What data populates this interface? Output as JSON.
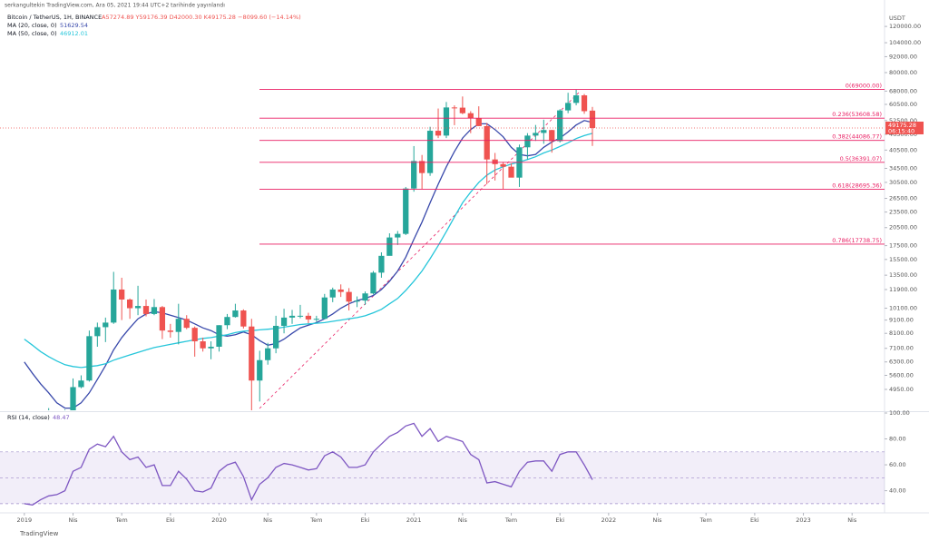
{
  "chart_data": {
    "type": "candlestick",
    "attribution": "serkangultekin TradingView.com, Ara 05, 2021 19:44 UTC+2 tarihinde yayınlandı",
    "title": "Bitcoin / TetherUS, 1H, BINANCE",
    "ohlc_summary": "A57274.89 Y59176.39 D42000.30 K49175.28 −8099.60 (−14.14%)",
    "currency": "USDT",
    "last_price": 49175.28,
    "countdown": "06:15:40",
    "footer": "TradingView",
    "log_scale": true,
    "colors": {
      "up": "#26a69a",
      "down": "#ef5350"
    },
    "xlim": [
      -3,
      106
    ],
    "xticks": [
      {
        "value": 0,
        "label": "2019"
      },
      {
        "value": 6,
        "label": "Nis"
      },
      {
        "value": 12,
        "label": "Tem"
      },
      {
        "value": 18,
        "label": "Eki"
      },
      {
        "value": 24,
        "label": "2020"
      },
      {
        "value": 30,
        "label": "Nis"
      },
      {
        "value": 36,
        "label": "Tem"
      },
      {
        "value": 42,
        "label": "Eki"
      },
      {
        "value": 48,
        "label": "2021"
      },
      {
        "value": 54,
        "label": "Nis"
      },
      {
        "value": 60,
        "label": "Tem"
      },
      {
        "value": 66,
        "label": "Eki"
      },
      {
        "value": 72,
        "label": "2022"
      },
      {
        "value": 78,
        "label": "Nis"
      },
      {
        "value": 84,
        "label": "Tem"
      },
      {
        "value": 90,
        "label": "Eki"
      },
      {
        "value": 96,
        "label": "2023"
      },
      {
        "value": 102,
        "label": "Nis"
      }
    ],
    "ylim": [
      4120,
      142000
    ],
    "yticks": [
      {
        "value": 120000,
        "label": "120000.00"
      },
      {
        "value": 104000,
        "label": "104000.00"
      },
      {
        "value": 92000,
        "label": "92000.00"
      },
      {
        "value": 80000,
        "label": "80000.00"
      },
      {
        "value": 68000,
        "label": "68000.00"
      },
      {
        "value": 60500,
        "label": "60500.00"
      },
      {
        "value": 52500,
        "label": "52500.00"
      },
      {
        "value": 46500,
        "label": "46500.00"
      },
      {
        "value": 40500,
        "label": "40500.00"
      },
      {
        "value": 34500,
        "label": "34500.00"
      },
      {
        "value": 30500,
        "label": "30500.00"
      },
      {
        "value": 26500,
        "label": "26500.00"
      },
      {
        "value": 23500,
        "label": "23500.00"
      },
      {
        "value": 20500,
        "label": "20500.00"
      },
      {
        "value": 17500,
        "label": "17500.00"
      },
      {
        "value": 15500,
        "label": "15500.00"
      },
      {
        "value": 13500,
        "label": "13500.00"
      },
      {
        "value": 11900,
        "label": "11900.00"
      },
      {
        "value": 10100,
        "label": "10100.00"
      },
      {
        "value": 9100,
        "label": "9100.00"
      },
      {
        "value": 8100,
        "label": "8100.00"
      },
      {
        "value": 7100,
        "label": "7100.00"
      },
      {
        "value": 6300,
        "label": "6300.00"
      },
      {
        "value": 5600,
        "label": "5600.00"
      },
      {
        "value": 4950,
        "label": "4950.00"
      }
    ],
    "open": [
      3700,
      3600,
      3450,
      3600,
      3850,
      3950,
      4100,
      5050,
      5350,
      7900,
      8550,
      8900,
      11900,
      10900,
      10100,
      10300,
      9600,
      10200,
      8300,
      8200,
      9200,
      8500,
      7550,
      7100,
      7200,
      8700,
      9350,
      9900,
      8600,
      5350,
      6400,
      7100,
      8650,
      9300,
      9450,
      9450,
      9150,
      9200,
      11100,
      11900,
      11650,
      10700,
      10800,
      11500,
      13800,
      16000,
      18800,
      19400,
      28900,
      36800,
      33100,
      48000,
      46000,
      58900,
      58800,
      56000,
      53600,
      50000,
      37300,
      35800,
      35000,
      31800,
      41500,
      46000,
      47100,
      48300,
      43800,
      57400,
      61300,
      65500,
      57274.89
    ],
    "high": [
      4100,
      3700,
      3700,
      4200,
      4000,
      4150,
      5450,
      5600,
      8300,
      8900,
      9300,
      13900,
      13200,
      11000,
      12300,
      10900,
      10950,
      10300,
      8800,
      10500,
      9500,
      8600,
      7800,
      7550,
      8700,
      9600,
      10500,
      10000,
      9200,
      6950,
      7450,
      9450,
      10050,
      9950,
      10400,
      9700,
      9450,
      11450,
      12100,
      12450,
      12050,
      11200,
      11700,
      14000,
      16500,
      19500,
      19900,
      29300,
      41950,
      38800,
      49700,
      58350,
      61800,
      60000,
      64850,
      57000,
      59500,
      51400,
      39500,
      36500,
      36000,
      42500,
      47000,
      50500,
      52900,
      48400,
      58000,
      67000,
      69000,
      66300,
      59176.39
    ],
    "low": [
      3550,
      3350,
      3400,
      3550,
      3750,
      3900,
      4100,
      5000,
      5300,
      7200,
      7500,
      8800,
      9100,
      9200,
      9500,
      9400,
      9500,
      7700,
      7800,
      7350,
      8400,
      6600,
      6900,
      6450,
      6900,
      8400,
      9300,
      8450,
      3850,
      4450,
      6150,
      6800,
      8100,
      8800,
      9250,
      8850,
      8950,
      9150,
      10650,
      11150,
      9900,
      10200,
      10400,
      11400,
      13200,
      16300,
      17600,
      19200,
      28100,
      28800,
      32300,
      45000,
      45000,
      50400,
      55500,
      47000,
      50000,
      30000,
      31000,
      28800,
      32000,
      29300,
      37300,
      43900,
      42800,
      39600,
      43300,
      56000,
      60000,
      55700,
      42000.3
    ],
    "close": [
      3600,
      3450,
      3600,
      3850,
      3950,
      4100,
      5050,
      5350,
      7900,
      8550,
      8900,
      11900,
      10900,
      10100,
      10300,
      9600,
      10200,
      8300,
      8200,
      9200,
      8500,
      7550,
      7100,
      7200,
      8700,
      9350,
      9900,
      8600,
      5350,
      6400,
      7100,
      8650,
      9300,
      9450,
      9450,
      9150,
      9200,
      11100,
      11900,
      11650,
      10700,
      10800,
      11500,
      13800,
      16000,
      18800,
      19400,
      28900,
      36800,
      33100,
      48000,
      46000,
      58900,
      58800,
      56000,
      53600,
      50000,
      37300,
      35800,
      35000,
      31800,
      41500,
      46000,
      47100,
      48300,
      43800,
      57400,
      61300,
      65500,
      57000,
      49175.28
    ],
    "overlays": [
      {
        "name": "MA (20, close, 0)",
        "color": "#3949ab",
        "values": [
          6300,
          5700,
          5200,
          4800,
          4400,
          4200,
          4200,
          4400,
          4800,
          5400,
          6100,
          7000,
          7800,
          8500,
          9200,
          9600,
          9800,
          9700,
          9500,
          9300,
          9100,
          8800,
          8500,
          8300,
          8000,
          7900,
          8000,
          8200,
          8000,
          7600,
          7300,
          7400,
          7700,
          8100,
          8500,
          8700,
          8900,
          9200,
          9600,
          10100,
          10500,
          10800,
          11000,
          11300,
          11900,
          12800,
          14000,
          15800,
          18500,
          21500,
          25500,
          30000,
          35000,
          40000,
          45000,
          48500,
          51000,
          51000,
          48500,
          45500,
          41500,
          39000,
          38500,
          39000,
          41500,
          43500,
          45000,
          47500,
          50500,
          52500,
          51629.54
        ]
      },
      {
        "name": "MA (50, close, 0)",
        "color": "#26c6da",
        "values": [
          7700,
          7300,
          6900,
          6600,
          6350,
          6150,
          6050,
          6000,
          6050,
          6100,
          6200,
          6400,
          6550,
          6700,
          6850,
          7000,
          7150,
          7250,
          7350,
          7450,
          7550,
          7650,
          7750,
          7800,
          7900,
          8000,
          8150,
          8250,
          8300,
          8350,
          8400,
          8450,
          8550,
          8650,
          8750,
          8800,
          8850,
          8900,
          9000,
          9100,
          9200,
          9300,
          9450,
          9700,
          10000,
          10500,
          11000,
          11800,
          12800,
          14000,
          15600,
          17500,
          19800,
          22500,
          25500,
          28000,
          30500,
          32500,
          34000,
          35000,
          35800,
          36500,
          37300,
          38200,
          39500,
          40500,
          41800,
          43200,
          44800,
          46000,
          46912.01
        ]
      }
    ],
    "fib_color": "#e91e63",
    "fib_levels": [
      {
        "value": 69000,
        "label": "0(69000.00)"
      },
      {
        "value": 53608.58,
        "label": "0.236(53608.58)"
      },
      {
        "value": 44086.77,
        "label": "0.382(44086.77)"
      },
      {
        "value": 36391.07,
        "label": "0.5(36391.07)"
      },
      {
        "value": 28695.36,
        "label": "0.618(28695.36)"
      },
      {
        "value": 17738.75,
        "label": "0.786(17738.75)"
      }
    ],
    "rsi": {
      "name": "RSI (14, close)",
      "color": "#7e57c2",
      "values": [
        30,
        29,
        33,
        36,
        37,
        40,
        55,
        58,
        72,
        76,
        74,
        82,
        70,
        64,
        66,
        58,
        60,
        44,
        44,
        55,
        49,
        40,
        39,
        42,
        55,
        60,
        62,
        51,
        33,
        45,
        50,
        58,
        61,
        60,
        58,
        56,
        57,
        67,
        70,
        66,
        58,
        58,
        60,
        70,
        76,
        82,
        85,
        90,
        92,
        82,
        88,
        78,
        82,
        80,
        78,
        68,
        64,
        46,
        47,
        45,
        43,
        55,
        62,
        63,
        63,
        55,
        68,
        70,
        70,
        60,
        48.47
      ],
      "ylim": [
        25,
        100
      ],
      "yticks": [
        {
          "value": 100,
          "label": "100.00"
        },
        {
          "value": 80,
          "label": "80.00"
        },
        {
          "value": 60,
          "label": "60.00"
        },
        {
          "value": 40,
          "label": "40.00"
        }
      ],
      "levels": [
        30,
        50,
        70
      ]
    }
  }
}
